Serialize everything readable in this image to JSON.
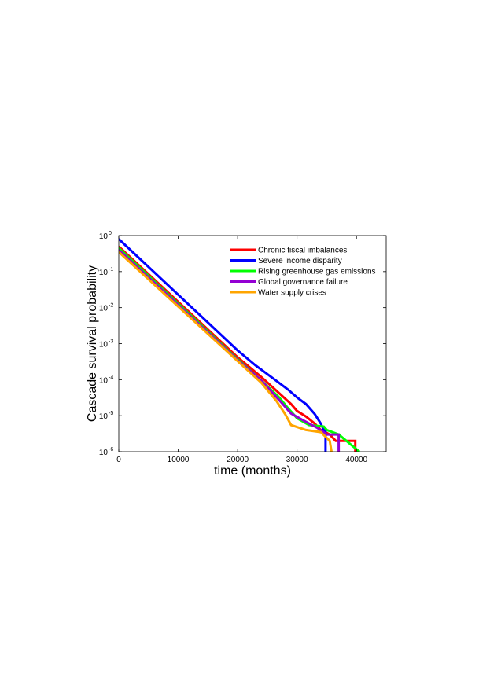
{
  "chart_data": {
    "type": "line",
    "xlabel": "time (months)",
    "ylabel": "Cascade survival probability",
    "xlim": [
      0,
      45000
    ],
    "ylim": [
      1e-06,
      1
    ],
    "yscale": "log",
    "xticks": [
      0,
      10000,
      20000,
      30000,
      40000
    ],
    "xtick_labels": [
      "0",
      "10000",
      "20000",
      "30000",
      "40000"
    ],
    "yticks": [
      1e-06,
      1e-05,
      0.0001,
      0.001,
      0.01,
      0.1,
      1
    ],
    "ytick_bases": [
      "10",
      "10",
      "10",
      "10",
      "10",
      "10",
      "10"
    ],
    "ytick_exponents": [
      "-6",
      "-5",
      "-4",
      "-3",
      "-2",
      "-1",
      "0"
    ],
    "grid": false,
    "legend_position": "top-right",
    "series": [
      {
        "name": "Chronic fiscal imbalances",
        "color": "#ff0000",
        "points": [
          [
            0,
            0.5
          ],
          [
            20000,
            0.00042
          ],
          [
            24000,
            0.000118
          ],
          [
            27000,
            4.2e-05
          ],
          [
            29000,
            2.1e-05
          ],
          [
            30000,
            1.35e-05
          ],
          [
            31500,
            9.5e-06
          ],
          [
            33000,
            6e-06
          ],
          [
            34000,
            4e-06
          ],
          [
            35500,
            3e-06
          ],
          [
            36500,
            2e-06
          ],
          [
            39800,
            2e-06
          ],
          [
            39800,
            1e-06
          ]
        ]
      },
      {
        "name": "Severe income disparity",
        "color": "#0000ff",
        "points": [
          [
            0,
            0.8
          ],
          [
            20000,
            0.00065
          ],
          [
            23000,
            0.00025
          ],
          [
            26000,
            0.000108
          ],
          [
            28500,
            5.3e-05
          ],
          [
            30000,
            3.2e-05
          ],
          [
            31500,
            2.1e-05
          ],
          [
            33000,
            1.1e-05
          ],
          [
            34000,
            6e-06
          ],
          [
            34500,
            4e-06
          ],
          [
            34800,
            4e-06
          ],
          [
            34800,
            1e-06
          ]
        ]
      },
      {
        "name": "Rising greenhouse gas emissions",
        "color": "#00ff00",
        "points": [
          [
            0,
            0.45
          ],
          [
            20000,
            0.00037
          ],
          [
            24000,
            9.5e-05
          ],
          [
            27000,
            3.2e-05
          ],
          [
            28500,
            1.6e-05
          ],
          [
            30000,
            8.5e-06
          ],
          [
            32000,
            5.5e-06
          ],
          [
            34500,
            5e-06
          ],
          [
            35000,
            4e-06
          ],
          [
            37000,
            3e-06
          ],
          [
            40500,
            1e-06
          ]
        ]
      },
      {
        "name": "Global governance failure",
        "color": "#9400d3",
        "points": [
          [
            0,
            0.4
          ],
          [
            20000,
            0.00035
          ],
          [
            24000,
            9.5e-05
          ],
          [
            27000,
            2.7e-05
          ],
          [
            29000,
            1.15e-05
          ],
          [
            31000,
            7.5e-06
          ],
          [
            33500,
            4.5e-06
          ],
          [
            35000,
            3e-06
          ],
          [
            37000,
            3e-06
          ],
          [
            37000,
            1e-06
          ]
        ]
      },
      {
        "name": "Water supply crises",
        "color": "#ffa500",
        "points": [
          [
            0,
            0.35
          ],
          [
            20000,
            0.00033
          ],
          [
            24000,
            8.2e-05
          ],
          [
            26500,
            2.6e-05
          ],
          [
            28000,
            1.1e-05
          ],
          [
            29000,
            5.5e-06
          ],
          [
            31500,
            4e-06
          ],
          [
            34000,
            3.5e-06
          ],
          [
            35500,
            2e-06
          ],
          [
            35800,
            1e-06
          ]
        ]
      }
    ]
  }
}
